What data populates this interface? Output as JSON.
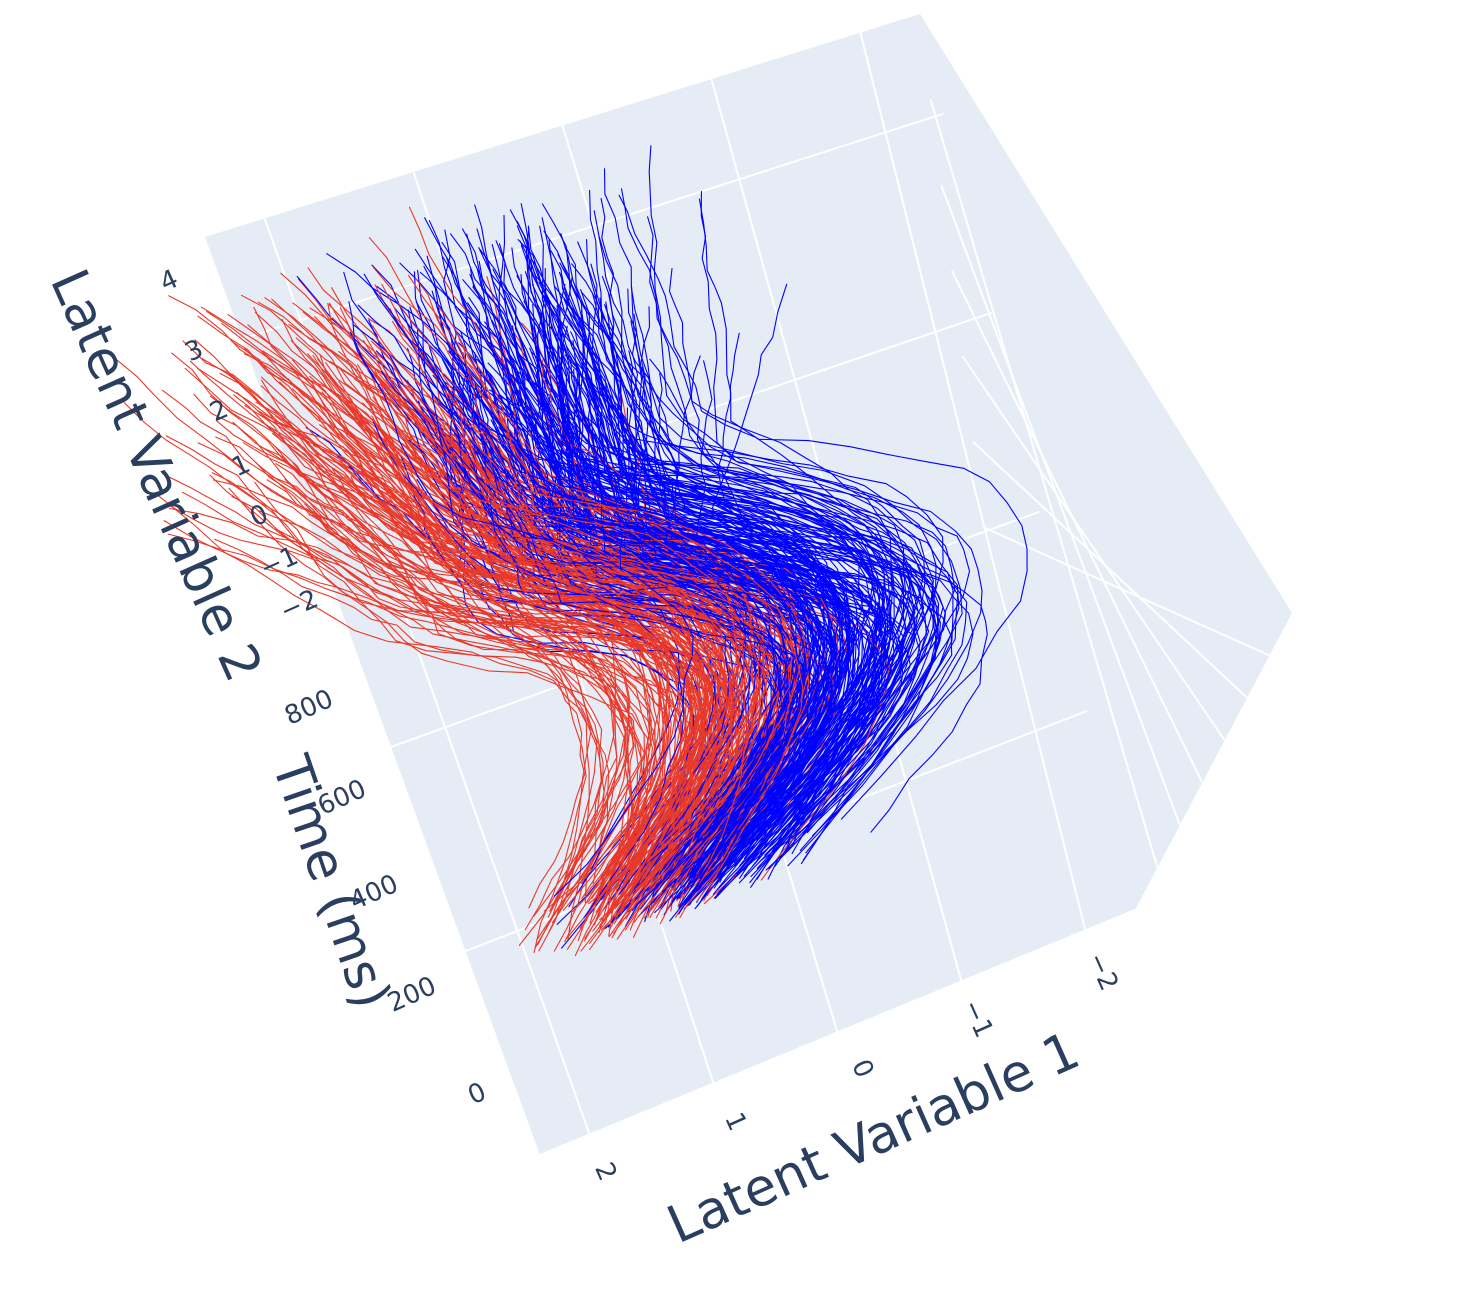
{
  "chart_data": {
    "type": "line",
    "projection": "3d",
    "xlabel": "Latent Variable 1",
    "ylabel": "Time (ms)",
    "zlabel": "Latent Variable 2",
    "x_ticks": [
      "2",
      "1",
      "0",
      "−1",
      "−2"
    ],
    "y_ticks": [
      "0",
      "200",
      "400",
      "600",
      "800"
    ],
    "z_ticks": [
      "−2",
      "−1",
      "0",
      "1",
      "2",
      "3",
      "4"
    ],
    "x_range": [
      -2.4,
      2.4
    ],
    "y_range": [
      0,
      900
    ],
    "z_range": [
      -2.6,
      4.3
    ],
    "background_color": "#e5ecf6",
    "grid": true,
    "series": [
      {
        "color": "#0000ff",
        "count": 250
      },
      {
        "color": "#e8392a",
        "count": 200
      }
    ]
  }
}
